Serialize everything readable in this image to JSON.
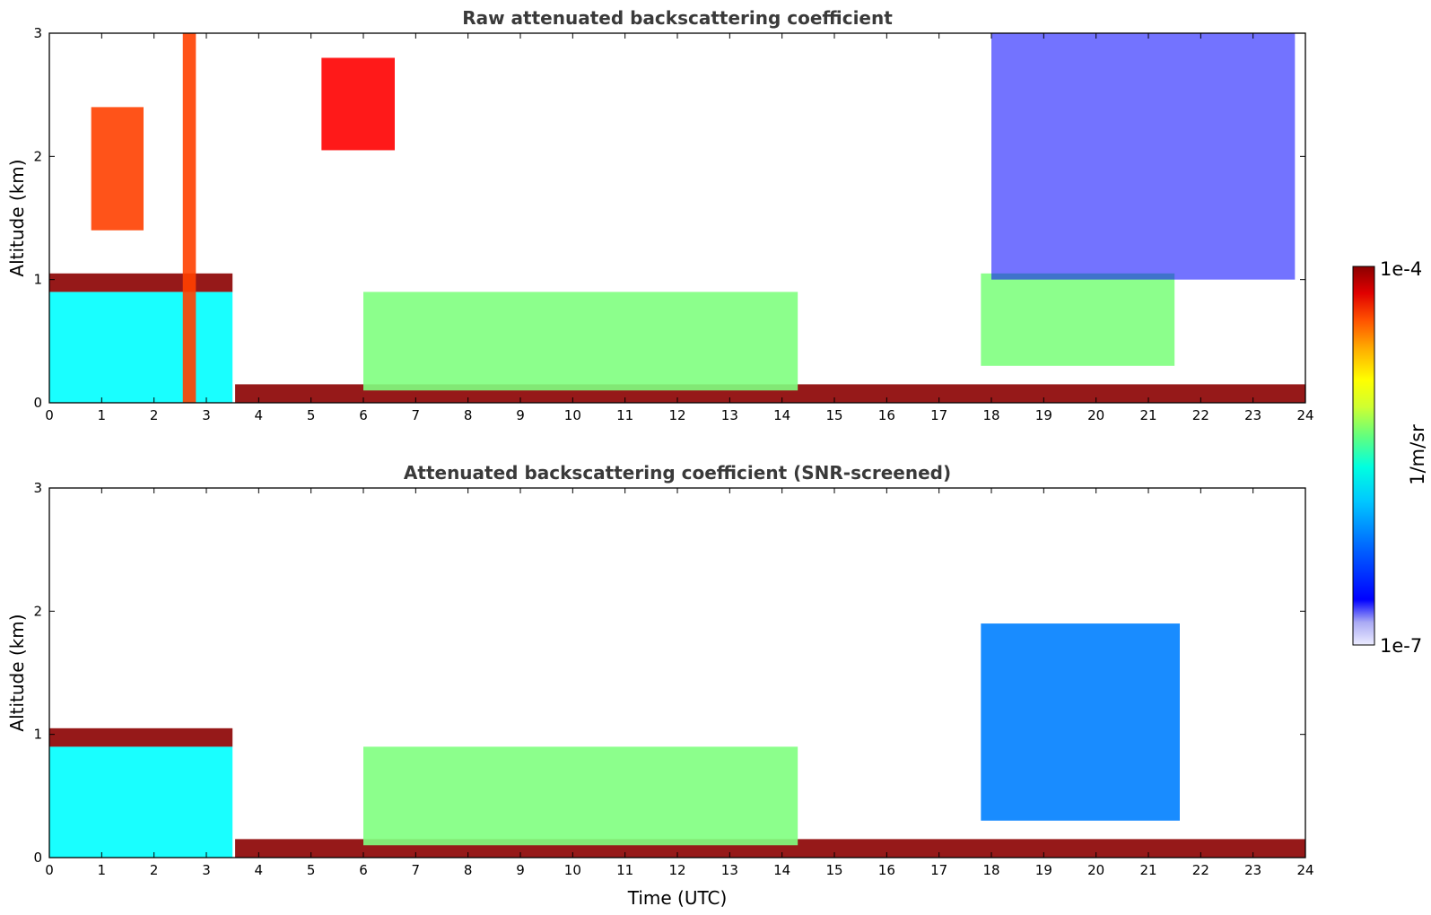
{
  "chart_data": [
    {
      "type": "heatmap",
      "title": "Raw attenuated backscattering coefficient",
      "xlabel": "",
      "ylabel": "Altitude (km)",
      "xlim": [
        0,
        24
      ],
      "ylim": [
        0,
        3
      ],
      "x_ticks": [
        "0",
        "1",
        "2",
        "3",
        "4",
        "5",
        "6",
        "7",
        "8",
        "9",
        "10",
        "11",
        "12",
        "13",
        "14",
        "15",
        "16",
        "17",
        "18",
        "19",
        "20",
        "21",
        "22",
        "23",
        "24"
      ],
      "y_ticks": [
        "0",
        "1",
        "2",
        "3"
      ],
      "screened": false,
      "layers": [
        {
          "name": "boundary-layer",
          "x": [
            0,
            3.5
          ],
          "y": [
            0,
            0.9
          ],
          "level": 0.42
        },
        {
          "name": "cloud-base-band",
          "x": [
            0,
            3.5
          ],
          "y": [
            0.9,
            1.05
          ],
          "level": 0.98
        },
        {
          "name": "cloud-top-early",
          "x": [
            0.8,
            1.8
          ],
          "y": [
            1.4,
            2.4
          ],
          "level": 0.85
        },
        {
          "name": "vertical-streak",
          "x": [
            2.55,
            2.8
          ],
          "y": [
            0,
            3
          ],
          "level": 0.8
        },
        {
          "name": "surface-layer",
          "x": [
            3.55,
            24
          ],
          "y": [
            0,
            0.15
          ],
          "level": 0.99
        },
        {
          "name": "morning-aerosol-bl",
          "x": [
            6,
            14.3
          ],
          "y": [
            0.1,
            0.9
          ],
          "level": 0.5
        },
        {
          "name": "elevated-aerosol-0530",
          "x": [
            5.2,
            6.6
          ],
          "y": [
            2.05,
            2.8
          ],
          "level": 0.9
        },
        {
          "name": "evening-cloud-layer",
          "x": [
            17.8,
            21.5
          ],
          "y": [
            0.3,
            1.05
          ],
          "level": 0.55
        },
        {
          "name": "upper-noise-cloud",
          "x": [
            18,
            23.8
          ],
          "y": [
            1.0,
            3.0
          ],
          "level": 0.2
        }
      ]
    },
    {
      "type": "heatmap",
      "title": "Attenuated backscattering coefficient (SNR-screened)",
      "xlabel": "Time (UTC)",
      "ylabel": "Altitude (km)",
      "xlim": [
        0,
        24
      ],
      "ylim": [
        0,
        3
      ],
      "x_ticks": [
        "0",
        "1",
        "2",
        "3",
        "4",
        "5",
        "6",
        "7",
        "8",
        "9",
        "10",
        "11",
        "12",
        "13",
        "14",
        "15",
        "16",
        "17",
        "18",
        "19",
        "20",
        "21",
        "22",
        "23",
        "24"
      ],
      "y_ticks": [
        "0",
        "1",
        "2",
        "3"
      ],
      "screened": true,
      "layers": [
        {
          "name": "boundary-layer",
          "x": [
            0,
            3.5
          ],
          "y": [
            0,
            0.9
          ],
          "level": 0.42
        },
        {
          "name": "cloud-base-band",
          "x": [
            0,
            3.5
          ],
          "y": [
            0.9,
            1.05
          ],
          "level": 1.0
        },
        {
          "name": "surface-layer",
          "x": [
            3.55,
            24
          ],
          "y": [
            0,
            0.15
          ],
          "level": 1.0
        },
        {
          "name": "daytime-bl",
          "x": [
            6,
            14.3
          ],
          "y": [
            0.1,
            0.9
          ],
          "level": 0.5
        },
        {
          "name": "evening-cloud",
          "x": [
            17.8,
            21.6
          ],
          "y": [
            0.3,
            1.9
          ],
          "level": 0.3
        }
      ]
    }
  ],
  "colorbar": {
    "label": "1/m/sr",
    "max_label": "1e-4",
    "min_label": "1e-7",
    "scale": "log",
    "range": [
      1e-07,
      0.0001
    ],
    "colors": [
      "#e8e8ff",
      "#c8c8f8",
      "#8c8cf0",
      "#0000ff",
      "#0040ff",
      "#0080ff",
      "#00c0ff",
      "#00ffff",
      "#40ffc0",
      "#80ff80",
      "#c0ff40",
      "#ffff00",
      "#ffc000",
      "#ff8000",
      "#ff4000",
      "#ff0000",
      "#c00000",
      "#8b0000"
    ]
  }
}
